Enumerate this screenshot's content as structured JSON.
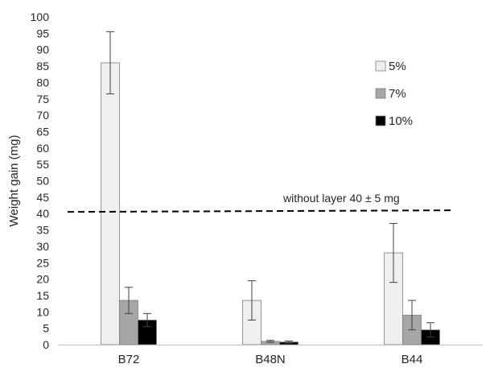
{
  "chart_data": {
    "type": "bar",
    "categories": [
      "B72",
      "B48N",
      "B44"
    ],
    "series": [
      {
        "name": "5%",
        "values": [
          86,
          13.5,
          28
        ],
        "errors": [
          9.5,
          6,
          9
        ],
        "color": "#efefef"
      },
      {
        "name": "7%",
        "values": [
          13.5,
          1,
          9
        ],
        "errors": [
          4,
          0.3,
          4.5
        ],
        "color": "#a6a6a6"
      },
      {
        "name": "10%",
        "values": [
          7.5,
          0.8,
          4.5
        ],
        "errors": [
          2,
          0.3,
          2.2
        ],
        "color": "#000000"
      }
    ],
    "ylabel": "Weight gain (mg)",
    "xlabel": "",
    "ylim": [
      0,
      100
    ],
    "yticks": [
      0,
      5,
      10,
      15,
      20,
      25,
      30,
      35,
      40,
      45,
      50,
      55,
      60,
      65,
      70,
      75,
      80,
      85,
      90,
      95,
      100
    ],
    "grid": false,
    "legend": "top-right",
    "reference_line": {
      "value": 40.5,
      "label": "without layer 40 ± 5 mg",
      "style": "dashed",
      "color": "#000000"
    }
  }
}
